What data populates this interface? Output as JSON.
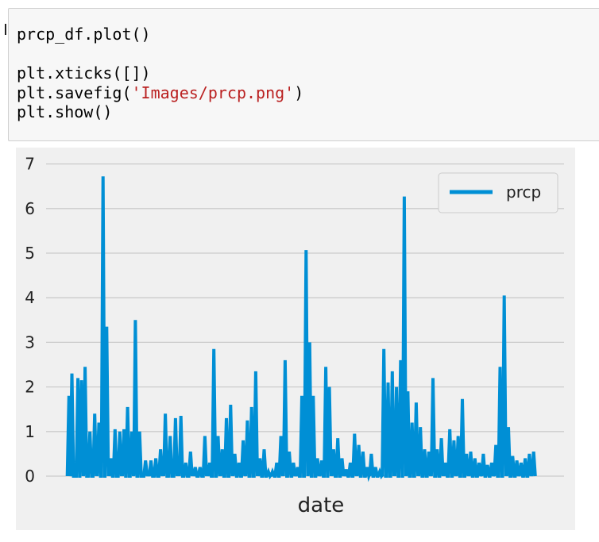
{
  "code_cell": {
    "lines": [
      {
        "parts": [
          {
            "text": "prcp_df.plot()",
            "kind": "plain"
          }
        ]
      },
      {
        "parts": [
          {
            "text": " ",
            "kind": "plain"
          }
        ]
      },
      {
        "parts": [
          {
            "text": "plt.xticks([])",
            "kind": "plain"
          }
        ]
      },
      {
        "parts": [
          {
            "text": "plt.savefig(",
            "kind": "plain"
          },
          {
            "text": "'Images/prcp.png'",
            "kind": "string"
          },
          {
            "text": ")",
            "kind": "plain"
          }
        ]
      },
      {
        "parts": [
          {
            "text": "plt.show()",
            "kind": "plain"
          }
        ]
      }
    ]
  },
  "chart_data": {
    "type": "line",
    "title": "",
    "xlabel": "date",
    "ylabel": "",
    "ylim": [
      0,
      7
    ],
    "yticks": [
      "0",
      "1",
      "2",
      "3",
      "4",
      "5",
      "6",
      "7"
    ],
    "xticks": [],
    "grid": true,
    "legend": {
      "position": "top-right"
    },
    "colors": {
      "series": "#008fd5",
      "grid": "#cbcbcb",
      "background": "#f0f0f0"
    },
    "series": [
      {
        "name": "prcp",
        "peaks": [
          [
            0.5,
            1.8
          ],
          [
            1.0,
            2.3
          ],
          [
            2.0,
            2.2
          ],
          [
            2.6,
            2.15
          ],
          [
            3.2,
            2.45
          ],
          [
            4.0,
            1.0
          ],
          [
            4.8,
            1.4
          ],
          [
            5.5,
            1.2
          ],
          [
            6.2,
            6.72
          ],
          [
            6.8,
            3.35
          ],
          [
            7.5,
            0.4
          ],
          [
            8.2,
            1.05
          ],
          [
            9.0,
            1.0
          ],
          [
            9.7,
            1.05
          ],
          [
            10.3,
            1.55
          ],
          [
            11.0,
            1.0
          ],
          [
            11.6,
            3.5
          ],
          [
            12.3,
            1.0
          ],
          [
            13.3,
            0.35
          ],
          [
            14.2,
            0.35
          ],
          [
            15.0,
            0.4
          ],
          [
            15.8,
            0.6
          ],
          [
            16.6,
            1.4
          ],
          [
            17.4,
            0.9
          ],
          [
            18.3,
            1.3
          ],
          [
            19.2,
            1.35
          ],
          [
            20.0,
            0.3
          ],
          [
            20.8,
            0.55
          ],
          [
            21.6,
            0.2
          ],
          [
            22.4,
            0.2
          ],
          [
            23.2,
            0.9
          ],
          [
            24.0,
            0.3
          ],
          [
            24.7,
            2.85
          ],
          [
            25.4,
            0.9
          ],
          [
            26.1,
            0.6
          ],
          [
            26.8,
            1.3
          ],
          [
            27.5,
            1.6
          ],
          [
            28.2,
            0.5
          ],
          [
            28.9,
            0.3
          ],
          [
            29.6,
            0.8
          ],
          [
            30.3,
            1.25
          ],
          [
            31.0,
            1.55
          ],
          [
            31.7,
            2.35
          ],
          [
            32.4,
            0.4
          ],
          [
            33.1,
            0.6
          ],
          [
            33.8,
            0.1
          ],
          [
            34.5,
            0.1
          ],
          [
            35.2,
            0.3
          ],
          [
            35.9,
            0.9
          ],
          [
            36.6,
            2.6
          ],
          [
            37.3,
            0.55
          ],
          [
            38.0,
            0.3
          ],
          [
            38.7,
            0.2
          ],
          [
            39.4,
            1.8
          ],
          [
            40.1,
            5.07
          ],
          [
            40.7,
            3.0
          ],
          [
            41.3,
            1.8
          ],
          [
            42.0,
            0.4
          ],
          [
            42.7,
            0.35
          ],
          [
            43.4,
            2.45
          ],
          [
            44.0,
            2.0
          ],
          [
            44.7,
            0.6
          ],
          [
            45.4,
            0.85
          ],
          [
            46.1,
            0.4
          ],
          [
            46.8,
            0.15
          ],
          [
            47.5,
            0.3
          ],
          [
            48.2,
            0.95
          ],
          [
            48.9,
            0.7
          ],
          [
            49.6,
            0.55
          ],
          [
            50.3,
            0.2
          ],
          [
            51.0,
            0.5
          ],
          [
            51.7,
            0.2
          ],
          [
            52.4,
            0.1
          ],
          [
            53.1,
            2.85
          ],
          [
            53.8,
            2.1
          ],
          [
            54.5,
            2.35
          ],
          [
            55.2,
            2.0
          ],
          [
            55.9,
            2.6
          ],
          [
            56.5,
            6.27
          ],
          [
            57.1,
            1.9
          ],
          [
            57.8,
            1.2
          ],
          [
            58.5,
            1.65
          ],
          [
            59.2,
            1.1
          ],
          [
            59.9,
            0.6
          ],
          [
            60.6,
            0.55
          ],
          [
            61.3,
            2.2
          ],
          [
            62.0,
            0.6
          ],
          [
            62.7,
            0.85
          ],
          [
            63.4,
            0.3
          ],
          [
            64.1,
            1.05
          ],
          [
            64.8,
            0.8
          ],
          [
            65.5,
            0.9
          ],
          [
            66.2,
            1.73
          ],
          [
            66.9,
            0.5
          ],
          [
            67.6,
            0.55
          ],
          [
            68.3,
            0.4
          ],
          [
            69.0,
            0.3
          ],
          [
            69.7,
            0.5
          ],
          [
            70.4,
            0.25
          ],
          [
            71.1,
            0.3
          ],
          [
            71.8,
            0.7
          ],
          [
            72.5,
            2.45
          ],
          [
            73.2,
            4.05
          ],
          [
            73.9,
            1.1
          ],
          [
            74.6,
            0.45
          ],
          [
            75.3,
            0.35
          ],
          [
            76.0,
            0.3
          ],
          [
            76.7,
            0.4
          ],
          [
            77.4,
            0.5
          ],
          [
            78.1,
            0.55
          ]
        ]
      }
    ]
  }
}
